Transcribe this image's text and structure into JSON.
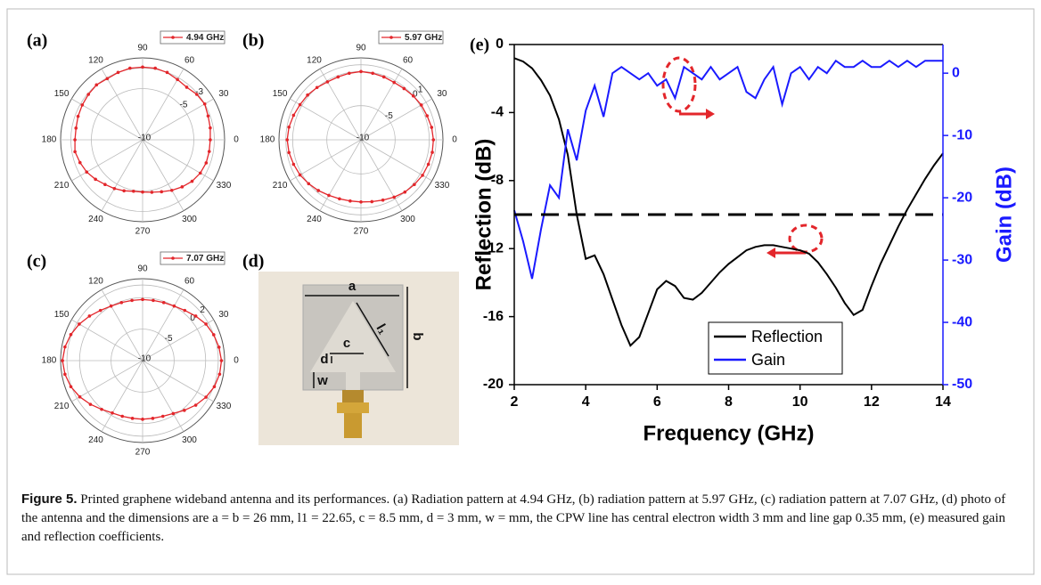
{
  "panel_labels": [
    "(a)",
    "(b)",
    "(c)",
    "(d)",
    "(e)"
  ],
  "chart_data": [
    {
      "type": "polar",
      "rlim": [
        -10,
        -2
      ],
      "rticks": [
        -10,
        -5,
        -3
      ],
      "thetaticks": [
        0,
        30,
        60,
        90,
        120,
        150,
        180,
        210,
        240,
        270,
        300,
        330
      ],
      "theta": [
        0,
        10,
        20,
        30,
        40,
        50,
        60,
        70,
        80,
        90,
        100,
        110,
        120,
        130,
        140,
        150,
        160,
        170,
        180,
        190,
        200,
        210,
        220,
        230,
        240,
        250,
        260,
        270,
        280,
        290,
        300,
        310,
        320,
        330,
        340,
        350
      ],
      "series": [
        {
          "name": "4.94 GHz",
          "color": "#e3262b",
          "values": [
            -3.4,
            -3.3,
            -3.2,
            -3.0,
            -3.1,
            -3.3,
            -3.2,
            -3.0,
            -2.9,
            -2.9,
            -2.9,
            -3.0,
            -3.1,
            -3.0,
            -3.1,
            -3.2,
            -3.3,
            -3.4,
            -3.4,
            -3.3,
            -3.5,
            -3.7,
            -4.0,
            -4.3,
            -4.5,
            -4.7,
            -4.9,
            -4.9,
            -4.8,
            -4.6,
            -4.3,
            -4.0,
            -3.7,
            -3.5,
            -3.4,
            -3.4
          ]
        }
      ]
    },
    {
      "type": "polar",
      "rlim": [
        -10,
        2
      ],
      "rticks": [
        -10,
        -5,
        0,
        1
      ],
      "thetaticks": [
        0,
        30,
        60,
        90,
        120,
        150,
        180,
        210,
        240,
        270,
        300,
        330
      ],
      "theta": [
        0,
        10,
        20,
        30,
        40,
        50,
        60,
        70,
        80,
        90,
        100,
        110,
        120,
        130,
        140,
        150,
        160,
        170,
        180,
        190,
        200,
        210,
        220,
        230,
        240,
        250,
        260,
        270,
        280,
        290,
        300,
        310,
        320,
        330,
        340,
        350
      ],
      "series": [
        {
          "name": "5.97 GHz",
          "color": "#e3262b",
          "values": [
            0.6,
            0.5,
            0.3,
            0.2,
            0.0,
            -0.2,
            -0.3,
            -0.2,
            -0.1,
            0.0,
            -0.1,
            -0.2,
            -0.2,
            0.0,
            0.2,
            0.3,
            0.5,
            0.7,
            0.8,
            0.7,
            0.5,
            0.3,
            0.0,
            -0.3,
            -0.6,
            -0.8,
            -0.9,
            -0.9,
            -0.8,
            -0.6,
            -0.3,
            0.0,
            0.2,
            0.4,
            0.5,
            0.6
          ]
        }
      ]
    },
    {
      "type": "polar",
      "rlim": [
        -10,
        3
      ],
      "rticks": [
        -10,
        -5,
        0,
        2
      ],
      "thetaticks": [
        0,
        30,
        60,
        90,
        120,
        150,
        180,
        210,
        240,
        270,
        300,
        330
      ],
      "theta": [
        0,
        10,
        20,
        30,
        40,
        50,
        60,
        70,
        80,
        90,
        100,
        110,
        120,
        130,
        140,
        150,
        160,
        170,
        180,
        190,
        200,
        210,
        220,
        230,
        240,
        250,
        260,
        270,
        280,
        290,
        300,
        310,
        320,
        330,
        340,
        350
      ],
      "series": [
        {
          "name": "7.07 GHz",
          "color": "#e3262b",
          "values": [
            2.5,
            2.3,
            2.0,
            1.6,
            1.0,
            0.4,
            0.0,
            -0.2,
            -0.3,
            -0.3,
            -0.3,
            -0.2,
            0.0,
            0.4,
            1.0,
            1.6,
            2.1,
            2.5,
            2.7,
            2.5,
            2.1,
            1.5,
            0.8,
            0.1,
            -0.4,
            -0.6,
            -0.7,
            -0.7,
            -0.7,
            -0.6,
            -0.3,
            0.3,
            1.0,
            1.6,
            2.1,
            2.4
          ]
        }
      ]
    },
    {
      "type": "line",
      "xlabel": "Frequency (GHz)",
      "ylabel": "Reflection (dB)",
      "y2label": "Gain (dB)",
      "xlim": [
        2,
        14
      ],
      "xticks": [
        2,
        4,
        6,
        8,
        10,
        12,
        14
      ],
      "ylim": [
        -20,
        0
      ],
      "yticks": [
        0,
        -4,
        -8,
        -12,
        -16,
        -20
      ],
      "y2lim": [
        -50,
        4.6
      ],
      "y2ticks": [
        0,
        -10,
        -20,
        -30,
        -40,
        -50
      ],
      "hline": -10,
      "hline_dashed": true,
      "legend": "lower center",
      "x": [
        2,
        2.25,
        2.5,
        2.75,
        3,
        3.25,
        3.5,
        3.75,
        4,
        4.25,
        4.5,
        4.75,
        5,
        5.25,
        5.5,
        5.75,
        6,
        6.25,
        6.5,
        6.75,
        7,
        7.25,
        7.5,
        7.75,
        8,
        8.25,
        8.5,
        8.75,
        9,
        9.25,
        9.5,
        9.75,
        10,
        10.25,
        10.5,
        10.75,
        11,
        11.25,
        11.5,
        11.75,
        12,
        12.25,
        12.5,
        12.75,
        13,
        13.25,
        13.5,
        13.75,
        14
      ],
      "series": [
        {
          "name": "Reflection",
          "color": "#000000",
          "values": [
            -0.8,
            -1.0,
            -1.4,
            -2.1,
            -3.0,
            -4.4,
            -6.5,
            -10.0,
            -12.6,
            -12.4,
            -13.5,
            -15.0,
            -16.5,
            -17.7,
            -17.2,
            -15.8,
            -14.4,
            -13.9,
            -14.2,
            -14.9,
            -15.0,
            -14.6,
            -14.0,
            -13.4,
            -12.9,
            -12.5,
            -12.1,
            -11.9,
            -11.8,
            -11.8,
            -11.9,
            -12.0,
            -12.1,
            -12.3,
            -12.8,
            -13.5,
            -14.3,
            -15.2,
            -15.9,
            -15.6,
            -14.2,
            -12.9,
            -11.8,
            -10.7,
            -9.7,
            -8.8,
            -7.9,
            -7.1,
            -6.4
          ]
        },
        {
          "name": "Gain",
          "color": "#1a1aff",
          "axis": "y2",
          "values": [
            -22,
            -27,
            -33,
            -25,
            -18,
            -20,
            -9,
            -14,
            -6,
            -2,
            -7,
            0,
            1,
            0,
            -1,
            0,
            -2,
            -1,
            -4,
            1,
            0,
            -1,
            1,
            -1,
            0,
            1,
            -3,
            -4,
            -1,
            1,
            -5,
            0,
            1,
            -1,
            1,
            0,
            2,
            1,
            1,
            2,
            1,
            1,
            2,
            1,
            2,
            1,
            2,
            2,
            2
          ]
        }
      ]
    }
  ],
  "photo": {
    "labels": [
      "a",
      "b",
      "l₁",
      "c",
      "d",
      "w"
    ]
  },
  "caption": {
    "label": "Figure 5.",
    "text": "Printed graphene wideband antenna and its performances. (a) Radiation pattern at 4.94 GHz, (b) radiation pattern at 5.97 GHz, (c) radiation pattern at 7.07 GHz, (d) photo of the antenna and the dimensions are a = b = 26 mm, l1 = 22.65, c = 8.5 mm, d = 3 mm, w =  mm, the CPW line has central electron width 3 mm and line gap 0.35 mm, (e) measured gain and reflection coefficients."
  }
}
